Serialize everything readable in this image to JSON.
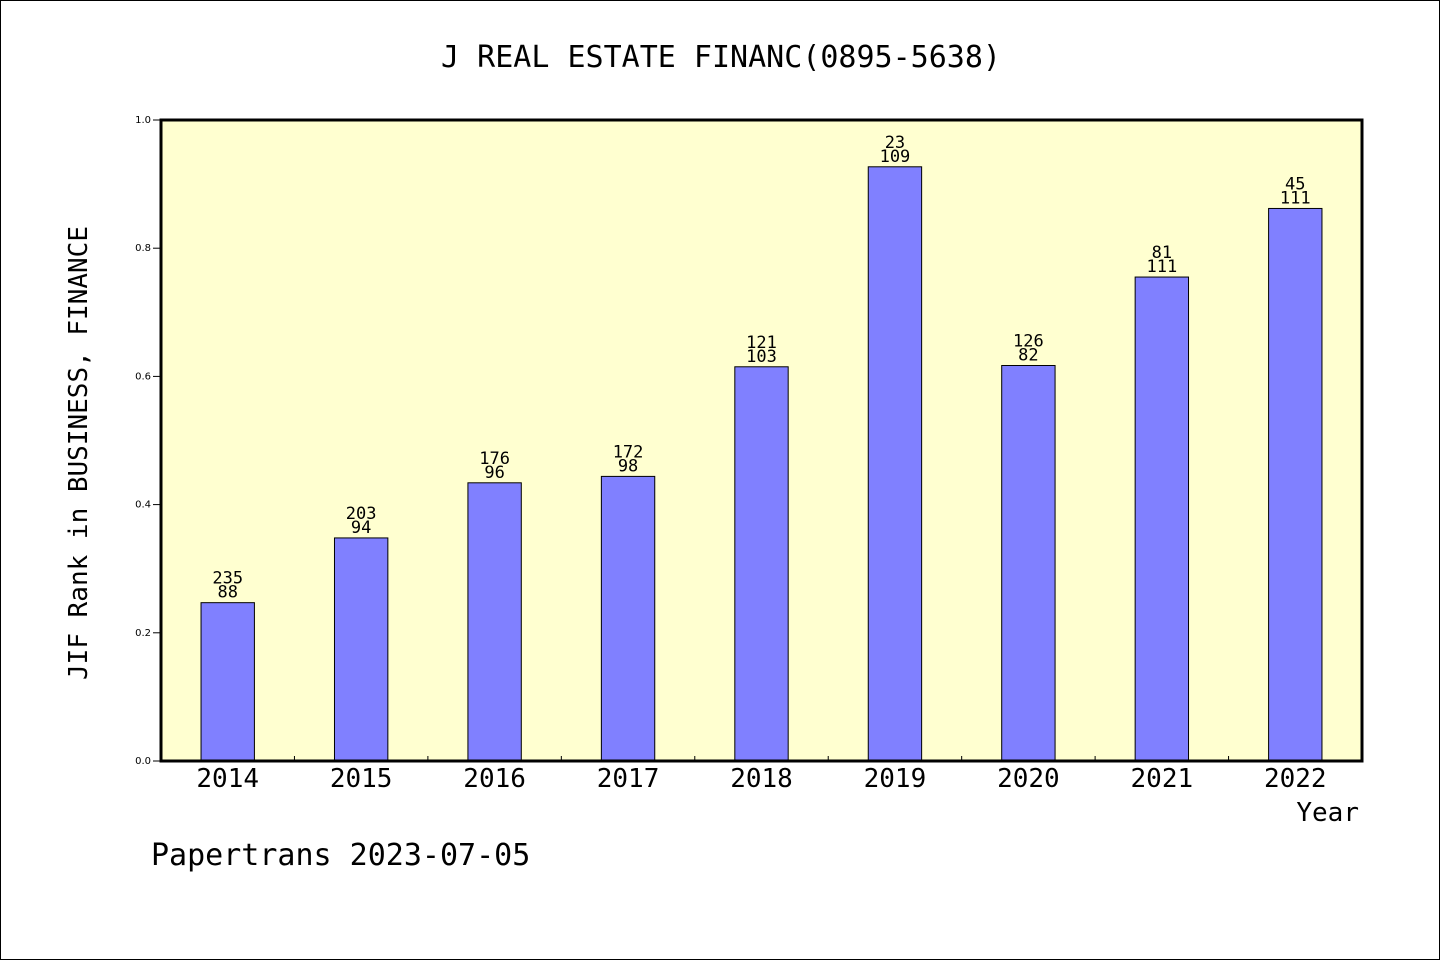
{
  "chart_data": {
    "type": "bar",
    "title": "J REAL ESTATE FINANC(0895-5638)",
    "xlabel": "Year",
    "ylabel": "JIF Rank in BUSINESS, FINANCE",
    "footer": "Papertrans 2023-07-05",
    "ylim": [
      0.0,
      1.0
    ],
    "yticks": [
      "0.0",
      "0.2",
      "0.4",
      "0.6",
      "0.8",
      "1.0"
    ],
    "categories": [
      "2014",
      "2015",
      "2016",
      "2017",
      "2018",
      "2019",
      "2020",
      "2021",
      "2022"
    ],
    "values": [
      0.247,
      0.348,
      0.434,
      0.444,
      0.615,
      0.927,
      0.617,
      0.755,
      0.862
    ],
    "rank_labels": [
      "235",
      "203",
      "176",
      "172",
      "121",
      "23",
      "126",
      "81",
      "45"
    ],
    "total_labels": [
      "88",
      "94",
      "96",
      "98",
      "103",
      "109",
      "82",
      "111",
      "111"
    ],
    "grid": false,
    "legend": "none",
    "colors": {
      "bar_fill": "#8080ff",
      "plot_background": "#ffffd0",
      "axis": "#000000"
    }
  }
}
